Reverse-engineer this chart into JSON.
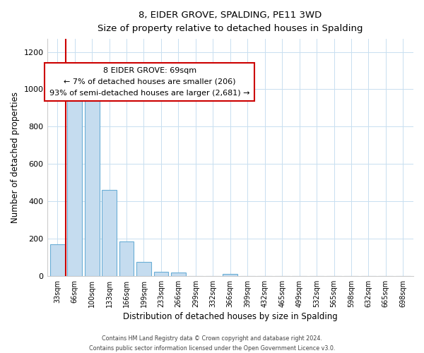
{
  "title": "8, EIDER GROVE, SPALDING, PE11 3WD",
  "subtitle": "Size of property relative to detached houses in Spalding",
  "xlabel": "Distribution of detached houses by size in Spalding",
  "ylabel": "Number of detached properties",
  "bar_labels": [
    "33sqm",
    "66sqm",
    "100sqm",
    "133sqm",
    "166sqm",
    "199sqm",
    "233sqm",
    "266sqm",
    "299sqm",
    "332sqm",
    "366sqm",
    "399sqm",
    "432sqm",
    "465sqm",
    "499sqm",
    "532sqm",
    "565sqm",
    "598sqm",
    "632sqm",
    "665sqm",
    "698sqm"
  ],
  "bar_values": [
    170,
    970,
    1000,
    460,
    185,
    75,
    22,
    18,
    0,
    0,
    10,
    0,
    0,
    0,
    0,
    0,
    0,
    0,
    0,
    0,
    0
  ],
  "bar_color": "#c5dcef",
  "bar_edge_color": "#6aaed6",
  "marker_color": "#cc0000",
  "annotation_title": "8 EIDER GROVE: 69sqm",
  "annotation_line1": "← 7% of detached houses are smaller (206)",
  "annotation_line2": "93% of semi-detached houses are larger (2,681) →",
  "ylim": [
    0,
    1270
  ],
  "yticks": [
    0,
    200,
    400,
    600,
    800,
    1000,
    1200
  ],
  "footnote1": "Contains HM Land Registry data © Crown copyright and database right 2024.",
  "footnote2": "Contains public sector information licensed under the Open Government Licence v3.0."
}
